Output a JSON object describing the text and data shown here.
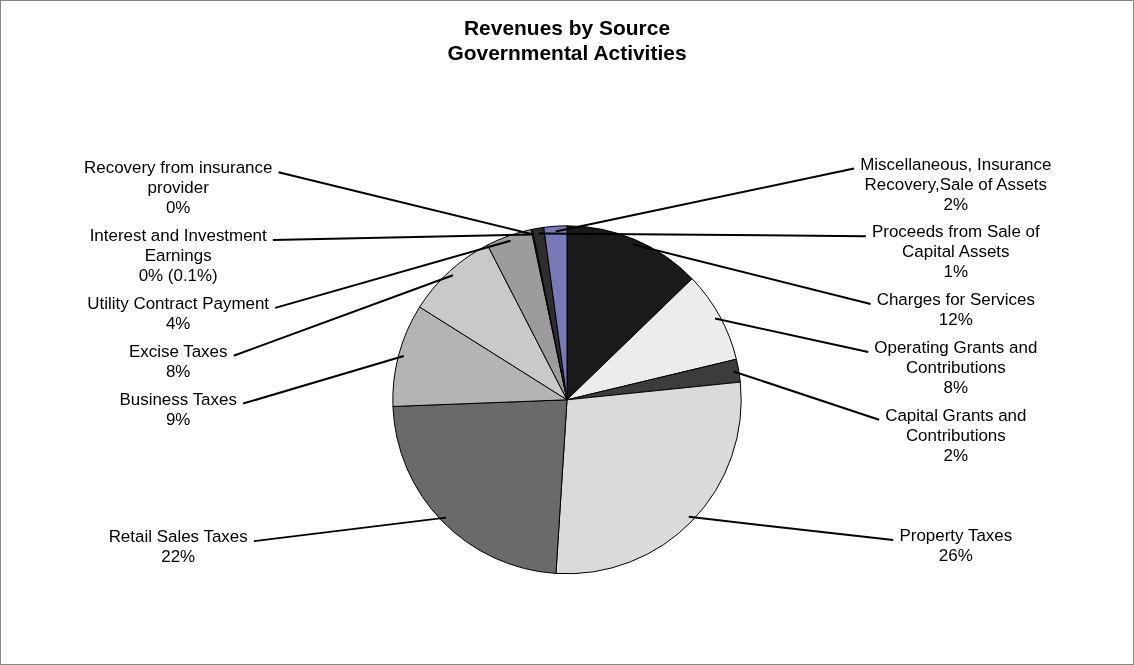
{
  "chart_data": {
    "type": "pie",
    "title": "Revenues by Source Governmental Activities",
    "categories": [
      "Charges for Services",
      "Operating Grants and Contributions",
      "Capital Grants and Contributions",
      "Property Taxes",
      "Retail Sales Taxes",
      "Business Taxes",
      "Excise Taxes",
      "Utility Contract Payment",
      "Interest and Investment Earnings",
      "Recovery from insurance provider",
      "Proceeds from Sale of Capital Assets",
      "Miscellaneous, Insurance Recovery,Sale of Assets"
    ],
    "values": [
      12,
      8,
      2,
      26,
      22,
      9,
      8,
      4,
      0.1,
      0,
      1,
      2
    ],
    "value_labels": [
      "12%",
      "8%",
      "2%",
      "26%",
      "22%",
      "9%",
      "8%",
      "4%",
      "0% (0.1%)",
      "0%",
      "1%",
      "2%"
    ],
    "colors": [
      "#1a1a1a",
      "#ececec",
      "#3c3c3c",
      "#dadada",
      "#6a6a6a",
      "#b4b4b4",
      "#c9c9c9",
      "#9c9c9c",
      "#555555",
      "#888888",
      "#2e2e2e",
      "#7878b8"
    ],
    "legend": false
  }
}
